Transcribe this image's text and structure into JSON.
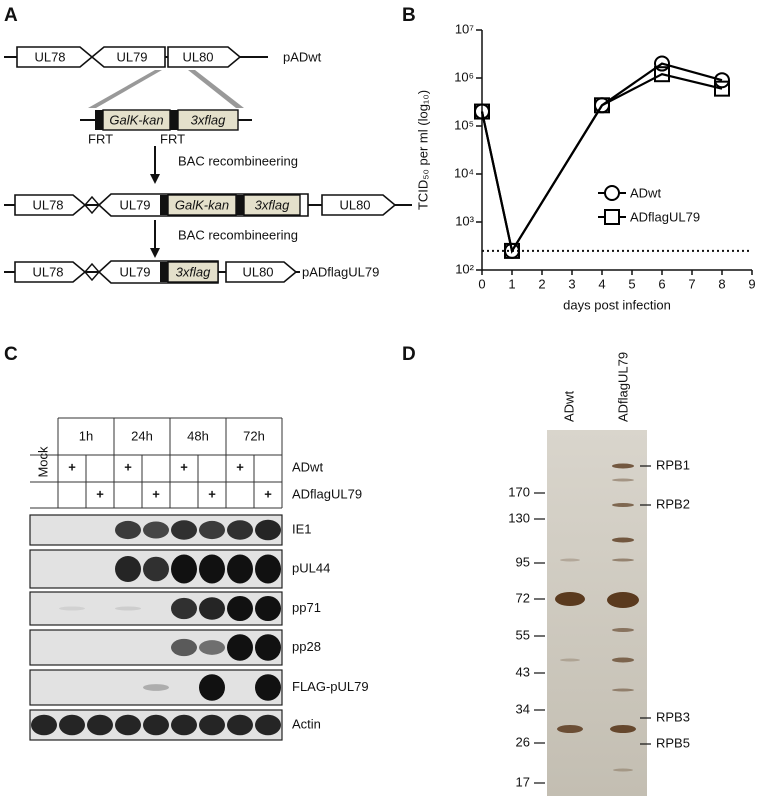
{
  "panel_a": {
    "label": "A",
    "wt": {
      "genes": [
        "UL78",
        "UL79",
        "UL80"
      ],
      "name": "pADwt"
    },
    "cassette": {
      "parts": [
        "GalK-kan",
        "3xflag"
      ],
      "sites": [
        "FRT",
        "FRT"
      ]
    },
    "steps": [
      "BAC recombineering",
      "BAC recombineering"
    ],
    "intermediate": {
      "genes": [
        "UL78",
        "UL79",
        "UL80"
      ],
      "parts": [
        "GalK-kan",
        "3xflag"
      ]
    },
    "final": {
      "genes": [
        "UL78",
        "UL79",
        "UL80"
      ],
      "parts": [
        "3xflag"
      ],
      "name": "pADflagUL79"
    }
  },
  "chart_data": {
    "type": "line",
    "panel_label": "B",
    "x_label": "days post infection",
    "y_label": "TCID₅₀ per ml (log₁₀)",
    "x": [
      0,
      1,
      4,
      6,
      8
    ],
    "series": [
      {
        "name": "ADwt",
        "color": "#000000",
        "marker": "circle",
        "values": [
          200000,
          250,
          270000,
          2000000,
          900000
        ]
      },
      {
        "name": "ADflagUL79",
        "color": "#000000",
        "marker": "square",
        "values": [
          200000,
          250,
          270000,
          1200000,
          600000
        ]
      }
    ],
    "detection_limit": 250,
    "xlim": [
      0,
      9
    ],
    "xticks": [
      0,
      1,
      2,
      3,
      4,
      5,
      6,
      7,
      8,
      9
    ],
    "ylim": [
      100,
      10000000
    ],
    "log_y": true,
    "yticks": [
      {
        "value": 100,
        "label": "10²"
      },
      {
        "value": 1000,
        "label": "10³"
      },
      {
        "value": 10000,
        "label": "10⁴"
      },
      {
        "value": 100000,
        "label": "10⁵"
      },
      {
        "value": 1000000,
        "label": "10⁶"
      },
      {
        "value": 10000000,
        "label": "10⁷"
      }
    ],
    "legend": "right"
  },
  "panel_c": {
    "label": "C",
    "mock": "Mock",
    "times": [
      "1h",
      "24h",
      "48h",
      "72h"
    ],
    "treatments": [
      {
        "name": "ADwt",
        "lanes": [
          "+",
          null,
          "+",
          null,
          "+",
          null,
          "+",
          null
        ]
      },
      {
        "name": "ADflagUL79",
        "lanes": [
          null,
          "+",
          null,
          "+",
          null,
          "+",
          null,
          "+"
        ]
      }
    ],
    "blots": [
      "IE1",
      "pUL44",
      "pp71",
      "pp28",
      "FLAG-pUL79",
      "Actin"
    ]
  },
  "panel_d": {
    "label": "D",
    "lanes": [
      "ADwt",
      "ADflagUL79"
    ],
    "markers": [
      170,
      130,
      95,
      72,
      55,
      43,
      34,
      26,
      17
    ],
    "subunits": [
      "RPB1",
      "RPB2",
      "RPB3",
      "RPB5"
    ]
  }
}
